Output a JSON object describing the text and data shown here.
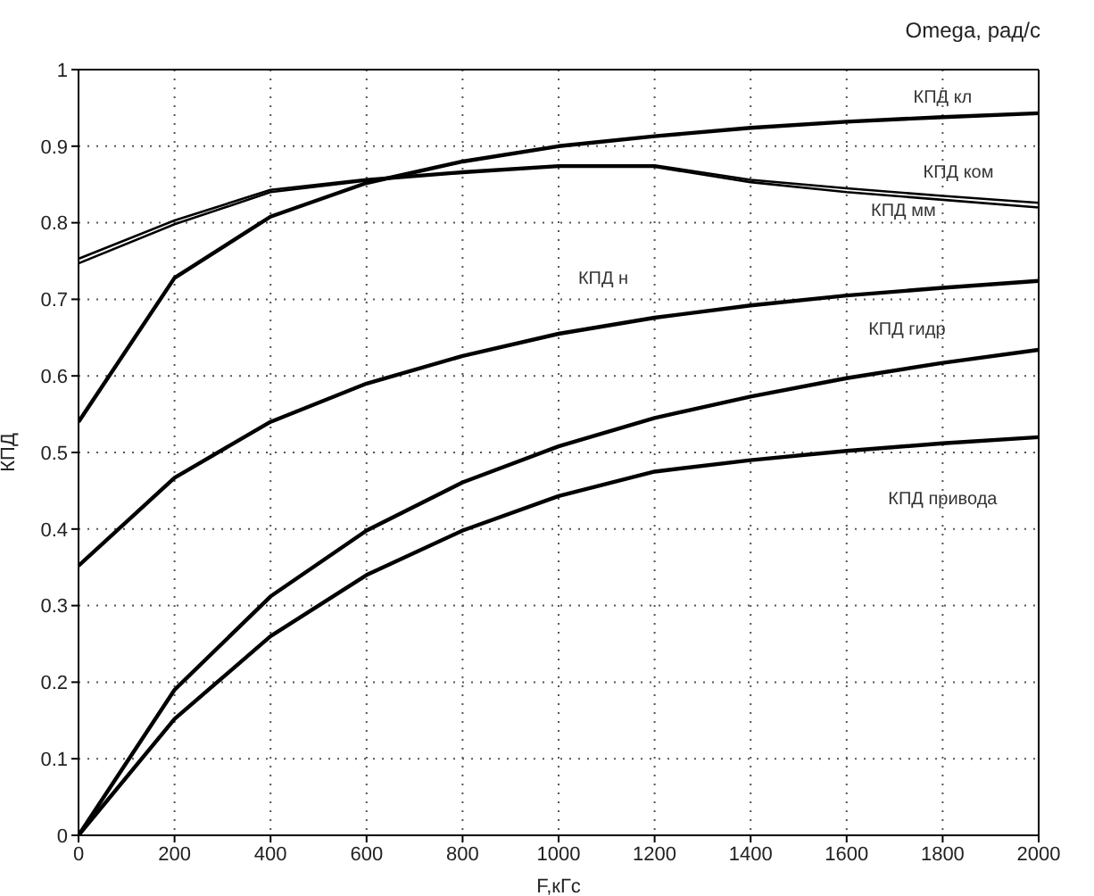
{
  "chart_data": {
    "type": "line",
    "title": "Omega, рад/с",
    "xlabel": "F,кГс",
    "ylabel": "КПД",
    "x": [
      0,
      200,
      400,
      600,
      800,
      1000,
      1200,
      1400,
      1600,
      1800,
      2000
    ],
    "series": [
      {
        "name": "КПД кл",
        "color": "#000000",
        "values": [
          0.54,
          0.728,
          0.808,
          0.852,
          0.88,
          0.9,
          0.913,
          0.924,
          0.932,
          0.938,
          0.943
        ]
      },
      {
        "name": "КПД ком",
        "color": "#000000",
        "values": [
          0.753,
          0.803,
          0.843,
          0.857,
          0.867,
          0.875,
          0.875,
          0.856,
          0.845,
          0.835,
          0.826
        ]
      },
      {
        "name": "КПД мм",
        "color": "#000000",
        "values": [
          0.747,
          0.798,
          0.84,
          0.855,
          0.865,
          0.873,
          0.873,
          0.853,
          0.84,
          0.83,
          0.82
        ]
      },
      {
        "name": "КПД н",
        "color": "#000000",
        "values": [
          0.352,
          0.467,
          0.54,
          0.59,
          0.626,
          0.655,
          0.676,
          0.692,
          0.705,
          0.715,
          0.724
        ]
      },
      {
        "name": "КПД гидр",
        "color": "#000000",
        "values": [
          0,
          0.19,
          0.312,
          0.398,
          0.461,
          0.508,
          0.545,
          0.573,
          0.597,
          0.617,
          0.634
        ]
      },
      {
        "name": "КПД привода",
        "color": "#000000",
        "values": [
          0,
          0.152,
          0.26,
          0.34,
          0.398,
          0.443,
          0.475,
          0.49,
          0.502,
          0.512,
          0.52
        ]
      }
    ],
    "xlim": [
      0,
      2000
    ],
    "xticks": [
      0,
      200,
      400,
      600,
      800,
      1000,
      1200,
      1400,
      1600,
      1800,
      2000
    ],
    "ylim": [
      0,
      1
    ],
    "yticks": [
      0,
      0.1,
      0.2,
      0.3,
      0.4,
      0.5,
      0.6,
      0.7,
      0.8,
      0.9,
      1
    ],
    "grid": true,
    "marker": "none",
    "line_style": "solid"
  }
}
